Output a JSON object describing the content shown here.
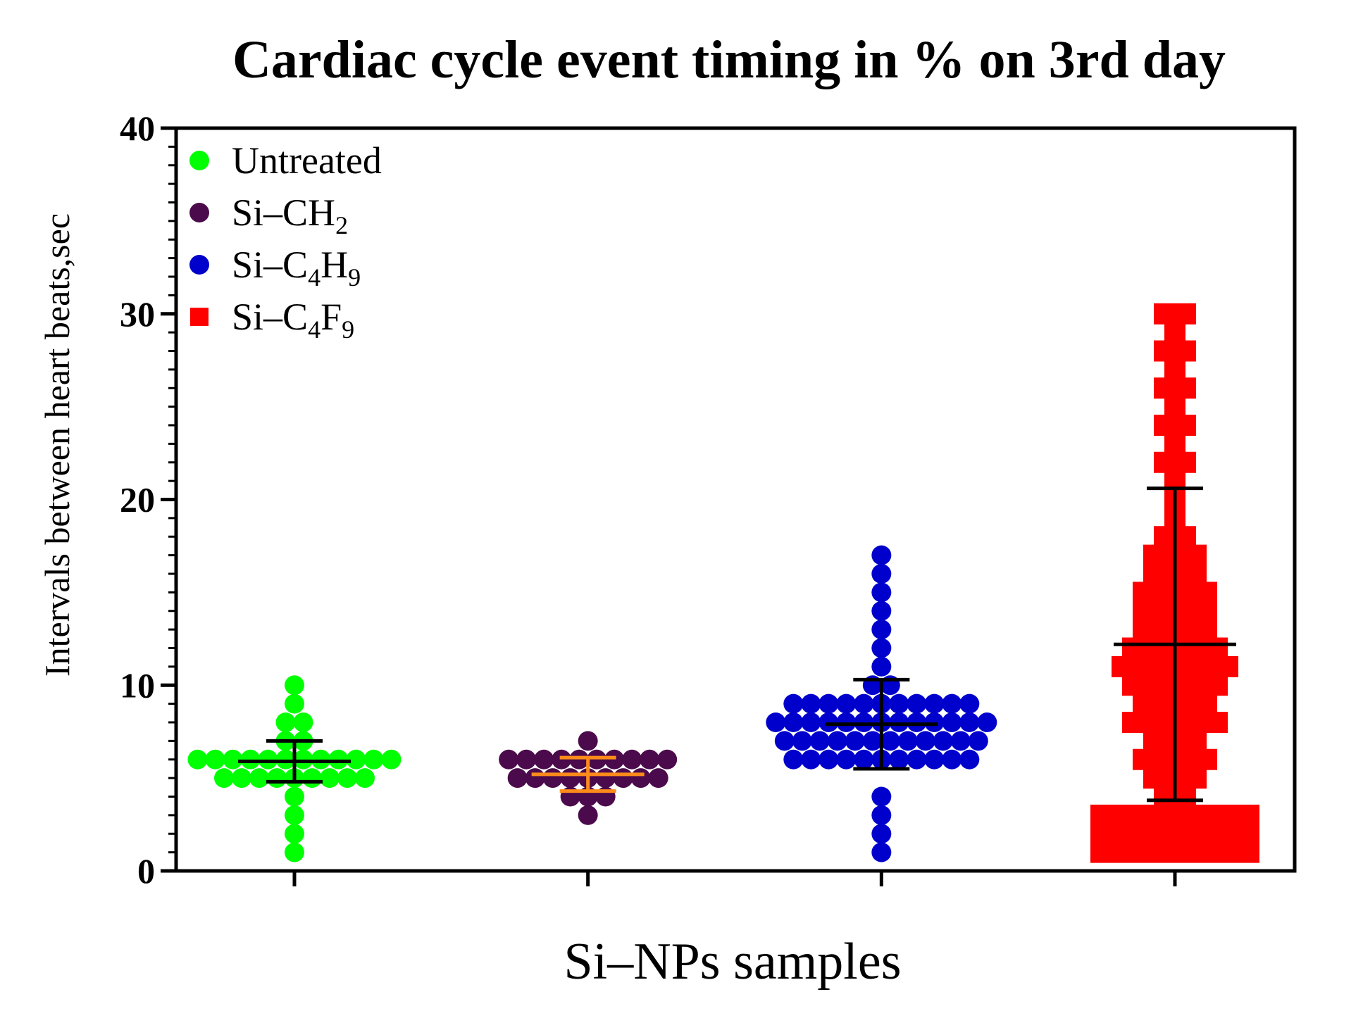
{
  "chart_data": {
    "type": "scatter",
    "title": "Cardiac cycle event timing in %  on 3rd day",
    "xlabel": "Si–NPs samples",
    "ylabel": "Intervals between heart beats,sec",
    "ylim": [
      0,
      40
    ],
    "yticks": [
      "0",
      "10",
      "20",
      "30",
      "40"
    ],
    "categories": [
      "Untreated",
      "Si–CH2",
      "Si–C4H9",
      "Si–C4F9"
    ],
    "legend_position": "top-left",
    "series": [
      {
        "name": "Untreated",
        "legend_base": "Si",
        "legend_label": "Untreated",
        "legend_parts": [],
        "color": "#00ff00",
        "marker": "circle",
        "mean": 5.9,
        "sd_low": 4.8,
        "sd_high": 7.0,
        "error_color": "#000000",
        "values": [
          1,
          2,
          3,
          4,
          5,
          5,
          5,
          5,
          5,
          5,
          5,
          5,
          5,
          6,
          6,
          6,
          6,
          6,
          6,
          6,
          6,
          6,
          6,
          6,
          6,
          7,
          7,
          8,
          8,
          9,
          10
        ]
      },
      {
        "name": "Si–CH2",
        "legend_base": "Si–CH",
        "legend_label": "Si–CH2",
        "legend_parts": [
          {
            "t": "Si–CH",
            "sub": false
          },
          {
            "t": "2",
            "sub": true
          }
        ],
        "color": "#4b0a4b",
        "marker": "circle",
        "mean": 5.2,
        "sd_low": 4.3,
        "sd_high": 6.1,
        "error_color": "#ff8c1a",
        "values": [
          3,
          4,
          4,
          4,
          5,
          5,
          5,
          5,
          5,
          5,
          5,
          5,
          5,
          6,
          6,
          6,
          6,
          6,
          6,
          6,
          6,
          6,
          6,
          7
        ]
      },
      {
        "name": "Si–C4H9",
        "legend_label": "Si–C4H9",
        "legend_parts": [
          {
            "t": "Si–C",
            "sub": false
          },
          {
            "t": "4",
            "sub": true
          },
          {
            "t": "H",
            "sub": false
          },
          {
            "t": "9",
            "sub": true
          }
        ],
        "color": "#0000cc",
        "marker": "circle",
        "mean": 7.9,
        "sd_low": 5.5,
        "sd_high": 10.3,
        "error_color": "#000000",
        "values": [
          1,
          2,
          3,
          4,
          6,
          6,
          6,
          6,
          6,
          6,
          6,
          6,
          6,
          6,
          6,
          7,
          7,
          7,
          7,
          7,
          7,
          7,
          7,
          7,
          7,
          7,
          7,
          8,
          8,
          8,
          8,
          8,
          8,
          8,
          8,
          8,
          8,
          8,
          8,
          8,
          9,
          9,
          9,
          9,
          9,
          9,
          9,
          9,
          9,
          9,
          9,
          10,
          10,
          11,
          12,
          13,
          14,
          15,
          16,
          17
        ]
      },
      {
        "name": "Si–C4F9",
        "legend_label": "Si–C4F9",
        "legend_parts": [
          {
            "t": "Si–C",
            "sub": false
          },
          {
            "t": "4",
            "sub": true
          },
          {
            "t": "F",
            "sub": false
          },
          {
            "t": "9",
            "sub": true
          }
        ],
        "color": "#ff0000",
        "marker": "square",
        "mean": 12.2,
        "sd_low": 3.8,
        "sd_high": 20.6,
        "error_color": "#000000",
        "values": [
          1,
          1,
          1,
          1,
          1,
          1,
          1,
          1,
          2,
          2,
          2,
          2,
          2,
          2,
          2,
          2,
          3,
          3,
          3,
          3,
          3,
          3,
          3,
          3,
          4,
          4,
          5,
          5,
          5,
          6,
          6,
          6,
          6,
          7,
          7,
          7,
          8,
          8,
          8,
          8,
          8,
          9,
          9,
          9,
          9,
          10,
          10,
          10,
          10,
          10,
          11,
          11,
          11,
          11,
          11,
          11,
          12,
          12,
          12,
          12,
          12,
          13,
          13,
          13,
          13,
          14,
          14,
          14,
          14,
          15,
          15,
          15,
          15,
          16,
          16,
          16,
          17,
          17,
          17,
          18,
          18,
          19,
          20,
          21,
          22,
          22,
          23,
          24,
          24,
          25,
          26,
          26,
          27,
          28,
          28,
          29,
          30,
          30
        ]
      }
    ]
  }
}
